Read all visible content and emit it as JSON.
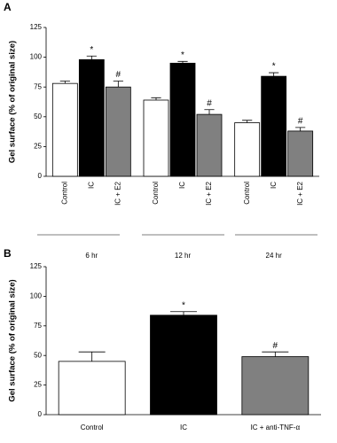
{
  "chart_data": [
    {
      "type": "bar",
      "panel_label": "A",
      "y_label": "Gel surface (% of original size)",
      "x": [
        "6 hr",
        "12 hr",
        "24 hr"
      ],
      "series": [
        {
          "name": "Control",
          "color": "#ffffff",
          "values": [
            78,
            64,
            45
          ],
          "errors": [
            2,
            2,
            2
          ]
        },
        {
          "name": "IC",
          "color": "#000000",
          "values": [
            98,
            95,
            84
          ],
          "errors": [
            3,
            1.5,
            3
          ],
          "annotation": "*"
        },
        {
          "name": "IC + E2",
          "color": "#808080",
          "values": [
            75,
            52,
            38
          ],
          "errors": [
            5,
            4,
            3
          ],
          "annotation": "#"
        }
      ],
      "ylim": [
        0,
        125
      ],
      "yticks": [
        0,
        25,
        50,
        75,
        100,
        125
      ]
    },
    {
      "type": "bar",
      "panel_label": "B",
      "y_label": "Gel surface (% of original size)",
      "categories": [
        "Control",
        "IC",
        "IC + anti-TNF-α"
      ],
      "colors": [
        "#ffffff",
        "#000000",
        "#808080"
      ],
      "values": [
        45,
        84,
        49
      ],
      "errors": [
        8,
        3,
        4
      ],
      "value_annotations": [
        null,
        "*",
        "#"
      ],
      "ylim": [
        0,
        125
      ],
      "yticks": [
        0,
        25,
        50,
        75,
        100,
        125
      ]
    }
  ]
}
